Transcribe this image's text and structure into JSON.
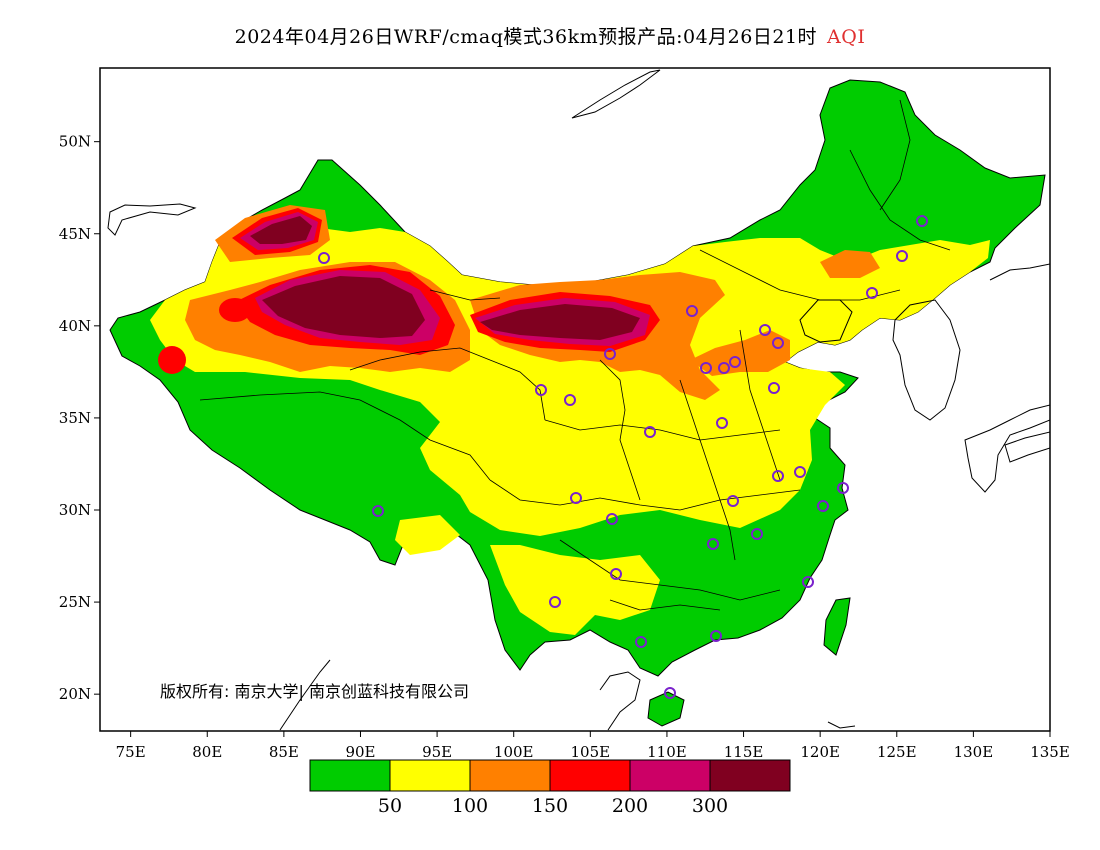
{
  "title": {
    "text": "2024年04月26日WRF/cmaq模式36km预报产品:04月26日21时",
    "variable": "AQI",
    "variable_color": "#e03030"
  },
  "map": {
    "lon_range": [
      73,
      135
    ],
    "lat_range": [
      18,
      54
    ],
    "lon_ticks": [
      "75E",
      "80E",
      "85E",
      "90E",
      "95E",
      "100E",
      "105E",
      "110E",
      "115E",
      "120E",
      "125E",
      "130E",
      "135E"
    ],
    "lat_ticks": [
      "20N",
      "25N",
      "30N",
      "35N",
      "40N",
      "45N",
      "50N"
    ],
    "copyright": "版权所有: 南京大学| 南京创蓝科技有限公司"
  },
  "legend": {
    "colors": [
      "#00cc00",
      "#ffff00",
      "#ff8000",
      "#ff0000",
      "#cc0066",
      "#800020"
    ],
    "labels": [
      "50",
      "100",
      "150",
      "200",
      "300"
    ],
    "categories": [
      "0-50",
      "50-100",
      "100-150",
      "150-200",
      "200-300",
      ">300"
    ]
  }
}
